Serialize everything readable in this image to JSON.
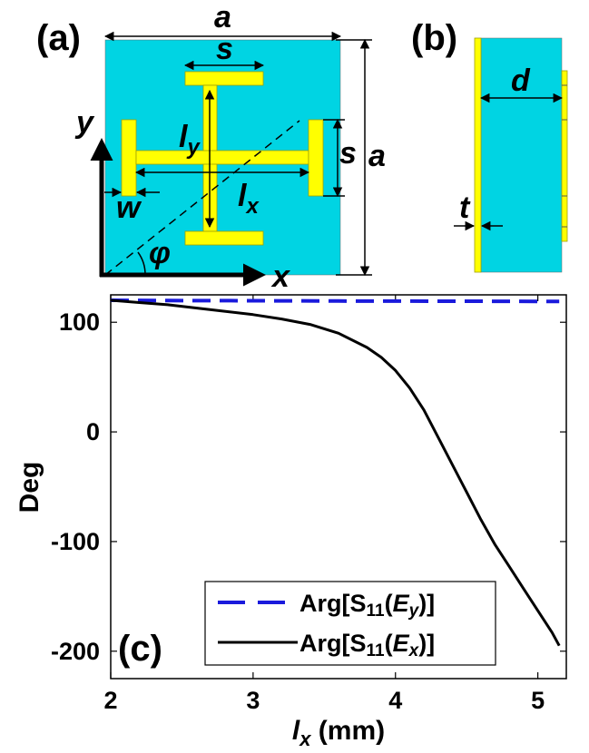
{
  "figure": {
    "panel_a": {
      "label": "(a)",
      "labels": {
        "a_top": "a",
        "a_side": "a",
        "s_top": "s",
        "s_side": "s",
        "ly": {
          "base": "l",
          "sub": "y"
        },
        "lx": {
          "base": "l",
          "sub": "x"
        },
        "w": "w",
        "y_axis": "y",
        "x_axis": "x",
        "phi": "φ"
      },
      "colors": {
        "substrate": "#00d4e3",
        "metal": "#ffff00"
      }
    },
    "panel_b": {
      "label": "(b)",
      "labels": {
        "d": "d",
        "t": "t"
      }
    },
    "panel_c": {
      "label": "(c)"
    }
  },
  "chart_data": {
    "type": "line",
    "xlabel": {
      "base": "l",
      "sub": "x",
      "unit": " (mm)"
    },
    "ylabel": "Deg",
    "xlim": [
      2,
      5.2
    ],
    "ylim": [
      -225,
      125
    ],
    "xticks": [
      2,
      3,
      4,
      5
    ],
    "yticks": [
      100,
      0,
      -100,
      -200
    ],
    "grid": false,
    "legend_position": "bottom-left",
    "series": [
      {
        "name": {
          "prefix": "Arg[S",
          "sub": "11",
          "open": "(",
          "field": "E",
          "field_sub": "y",
          "close": ")]"
        },
        "style": "dashed",
        "color": "#1a1adc",
        "x": [
          2.0,
          2.4,
          2.8,
          3.2,
          3.6,
          4.0,
          4.4,
          4.8,
          5.15
        ],
        "y": [
          120.0,
          119.8,
          119.7,
          119.5,
          119.4,
          119.3,
          119.2,
          119.1,
          119.0
        ]
      },
      {
        "name": {
          "prefix": "Arg[S",
          "sub": "11",
          "open": "(",
          "field": "E",
          "field_sub": "x",
          "close": ")]"
        },
        "style": "solid",
        "color": "#000000",
        "x": [
          2.0,
          2.2,
          2.4,
          2.6,
          2.8,
          3.0,
          3.2,
          3.4,
          3.6,
          3.8,
          3.9,
          4.0,
          4.1,
          4.2,
          4.3,
          4.4,
          4.5,
          4.6,
          4.7,
          4.8,
          4.9,
          5.0,
          5.1,
          5.15
        ],
        "y": [
          120,
          118,
          116,
          113,
          110,
          107,
          103,
          98,
          90,
          77,
          68,
          56,
          40,
          20,
          -5,
          -30,
          -55,
          -80,
          -103,
          -123,
          -143,
          -163,
          -183,
          -195
        ]
      }
    ]
  }
}
